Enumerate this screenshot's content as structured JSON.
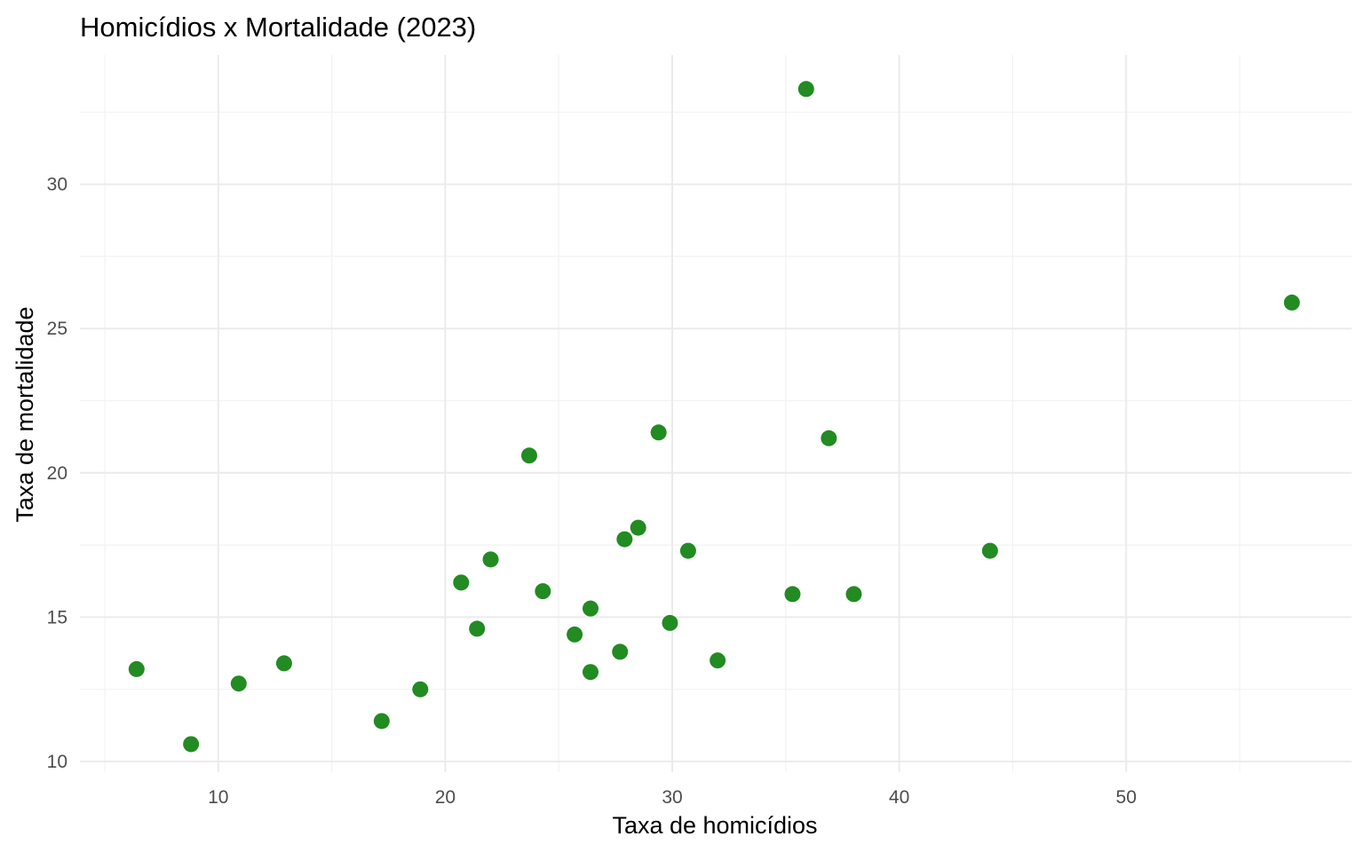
{
  "chart_data": {
    "type": "scatter",
    "title": "Homicídios x Mortalidade (2023)",
    "xlabel": "Taxa de homicídios",
    "ylabel": "Taxa de mortalidade",
    "xlim": [
      4.5,
      58.5
    ],
    "ylim": [
      9.8,
      34.3
    ],
    "x_ticks": [
      10,
      20,
      30,
      40,
      50
    ],
    "y_ticks": [
      10,
      15,
      20,
      25,
      30
    ],
    "x_tick_labels": [
      "10",
      "20",
      "30",
      "40",
      "50"
    ],
    "y_tick_labels": [
      "10",
      "15",
      "20",
      "25",
      "30"
    ],
    "grid": true,
    "point_color": "#228B22",
    "points": [
      {
        "x": 6.4,
        "y": 13.2
      },
      {
        "x": 8.8,
        "y": 10.6
      },
      {
        "x": 10.9,
        "y": 12.7
      },
      {
        "x": 12.9,
        "y": 13.4
      },
      {
        "x": 17.2,
        "y": 11.4
      },
      {
        "x": 18.9,
        "y": 12.5
      },
      {
        "x": 20.7,
        "y": 16.2
      },
      {
        "x": 21.4,
        "y": 14.6
      },
      {
        "x": 22.0,
        "y": 17.0
      },
      {
        "x": 23.7,
        "y": 20.6
      },
      {
        "x": 24.3,
        "y": 15.9
      },
      {
        "x": 25.7,
        "y": 14.4
      },
      {
        "x": 26.4,
        "y": 13.1
      },
      {
        "x": 26.4,
        "y": 15.3
      },
      {
        "x": 27.7,
        "y": 13.8
      },
      {
        "x": 27.9,
        "y": 17.7
      },
      {
        "x": 28.5,
        "y": 18.1
      },
      {
        "x": 29.4,
        "y": 21.4
      },
      {
        "x": 29.9,
        "y": 14.8
      },
      {
        "x": 30.7,
        "y": 17.3
      },
      {
        "x": 32.0,
        "y": 13.5
      },
      {
        "x": 35.3,
        "y": 15.8
      },
      {
        "x": 35.9,
        "y": 33.3
      },
      {
        "x": 36.9,
        "y": 21.2
      },
      {
        "x": 38.0,
        "y": 15.8
      },
      {
        "x": 44.0,
        "y": 17.3
      },
      {
        "x": 57.3,
        "y": 25.9
      }
    ]
  }
}
